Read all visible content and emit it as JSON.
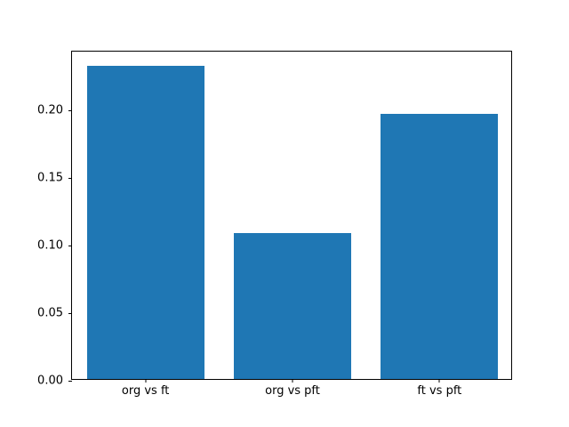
{
  "chart_data": {
    "type": "bar",
    "title": "",
    "xlabel": "",
    "ylabel": "",
    "categories": [
      "org vs ft",
      "org vs pft",
      "ft vs pft"
    ],
    "values": [
      0.232,
      0.108,
      0.196
    ],
    "ylim": [
      0,
      0.2436
    ],
    "yticks": [
      0.0,
      0.05,
      0.1,
      0.15,
      0.2
    ],
    "ytick_labels": [
      "0.00",
      "0.05",
      "0.10",
      "0.15",
      "0.20"
    ],
    "bar_color": "#1f77b4",
    "background_color": "#ffffff",
    "grid": false,
    "legend": null,
    "bar_width_fraction": 0.2667
  }
}
